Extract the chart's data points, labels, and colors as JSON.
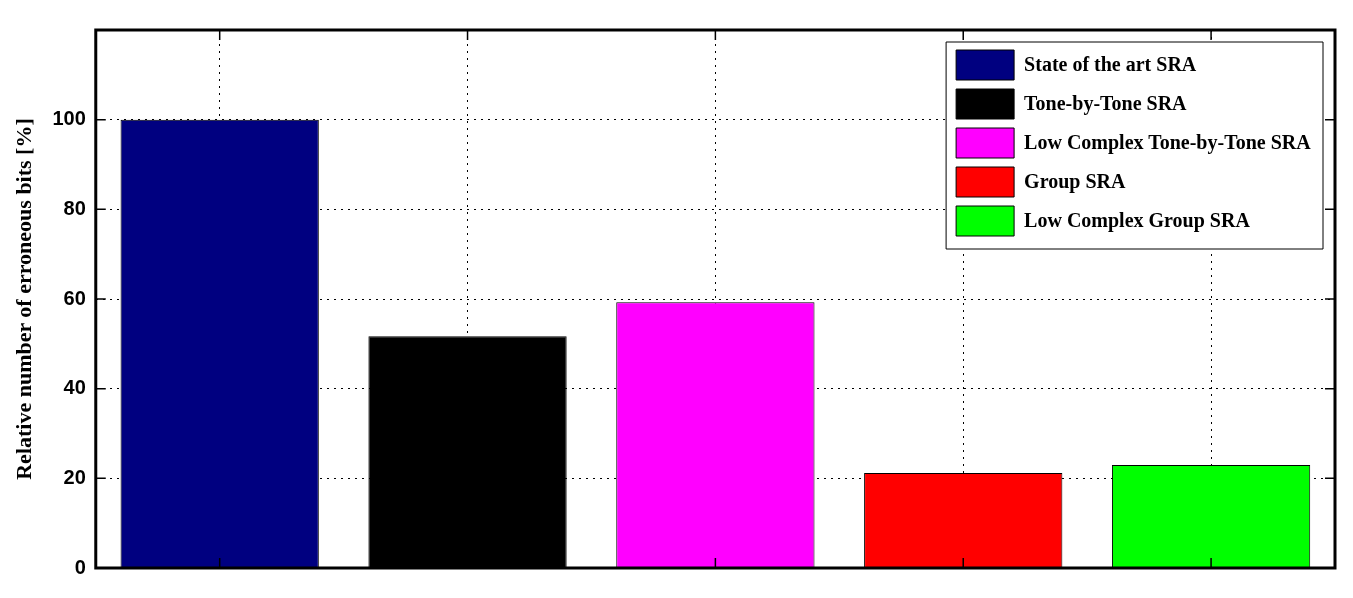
{
  "chart_data": {
    "type": "bar",
    "ylabel": "Relative number of erroneous bits [%]",
    "categories": [
      null,
      null,
      null,
      null,
      null
    ],
    "series": [
      {
        "name": "State of the art SRA",
        "color": "#000080",
        "values": [
          100,
          null,
          null,
          null,
          null
        ]
      },
      {
        "name": "Tone-by-Tone SRA",
        "color": "#000000",
        "values": [
          null,
          51.7,
          null,
          null,
          null
        ]
      },
      {
        "name": "Low Complex Tone-by-Tone SRA",
        "color": "#ff00ff",
        "values": [
          null,
          null,
          59.3,
          null,
          null
        ]
      },
      {
        "name": "Group SRA",
        "color": "#ff0000",
        "values": [
          null,
          null,
          null,
          21.2,
          null
        ]
      },
      {
        "name": "Low Complex Group SRA",
        "color": "#00ff00",
        "values": [
          null,
          null,
          null,
          null,
          23
        ]
      }
    ],
    "ylim": [
      0,
      120
    ],
    "yticks": [
      0,
      20,
      40,
      60,
      80,
      100
    ],
    "grid": true,
    "legend": "top right"
  }
}
